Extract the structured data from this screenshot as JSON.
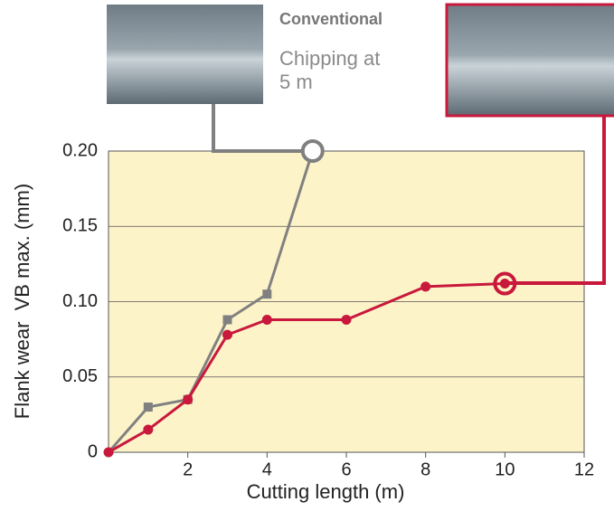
{
  "chart_data": {
    "type": "line",
    "xlabel": "Cutting length (m)",
    "ylabel": "Flank wear  VB max. (mm)",
    "xlim": [
      0,
      12
    ],
    "xticks": [
      2,
      4,
      6,
      8,
      10,
      12
    ],
    "ylim": [
      0,
      0.2
    ],
    "yticks": [
      0,
      0.05,
      {
        "value": 0.1,
        "label": "0.10"
      },
      0.15,
      {
        "value": 0.2,
        "label": "0.20"
      }
    ],
    "grid": true,
    "annotation": "Chipping at 5 m",
    "series": [
      {
        "name": "Conventional",
        "color": "#808080",
        "marker": "square",
        "x": [
          0,
          1,
          2,
          3,
          4,
          5.15
        ],
        "values": [
          0,
          0.03,
          0.035,
          0.088,
          0.105,
          0.2
        ]
      },
      {
        "color": "#c8183c",
        "marker": "circle",
        "x": [
          0,
          1,
          2,
          3,
          4,
          6,
          8,
          10
        ],
        "values": [
          0,
          0.015,
          0.035,
          0.078,
          0.088,
          0.088,
          0.11,
          0.112
        ]
      }
    ]
  }
}
